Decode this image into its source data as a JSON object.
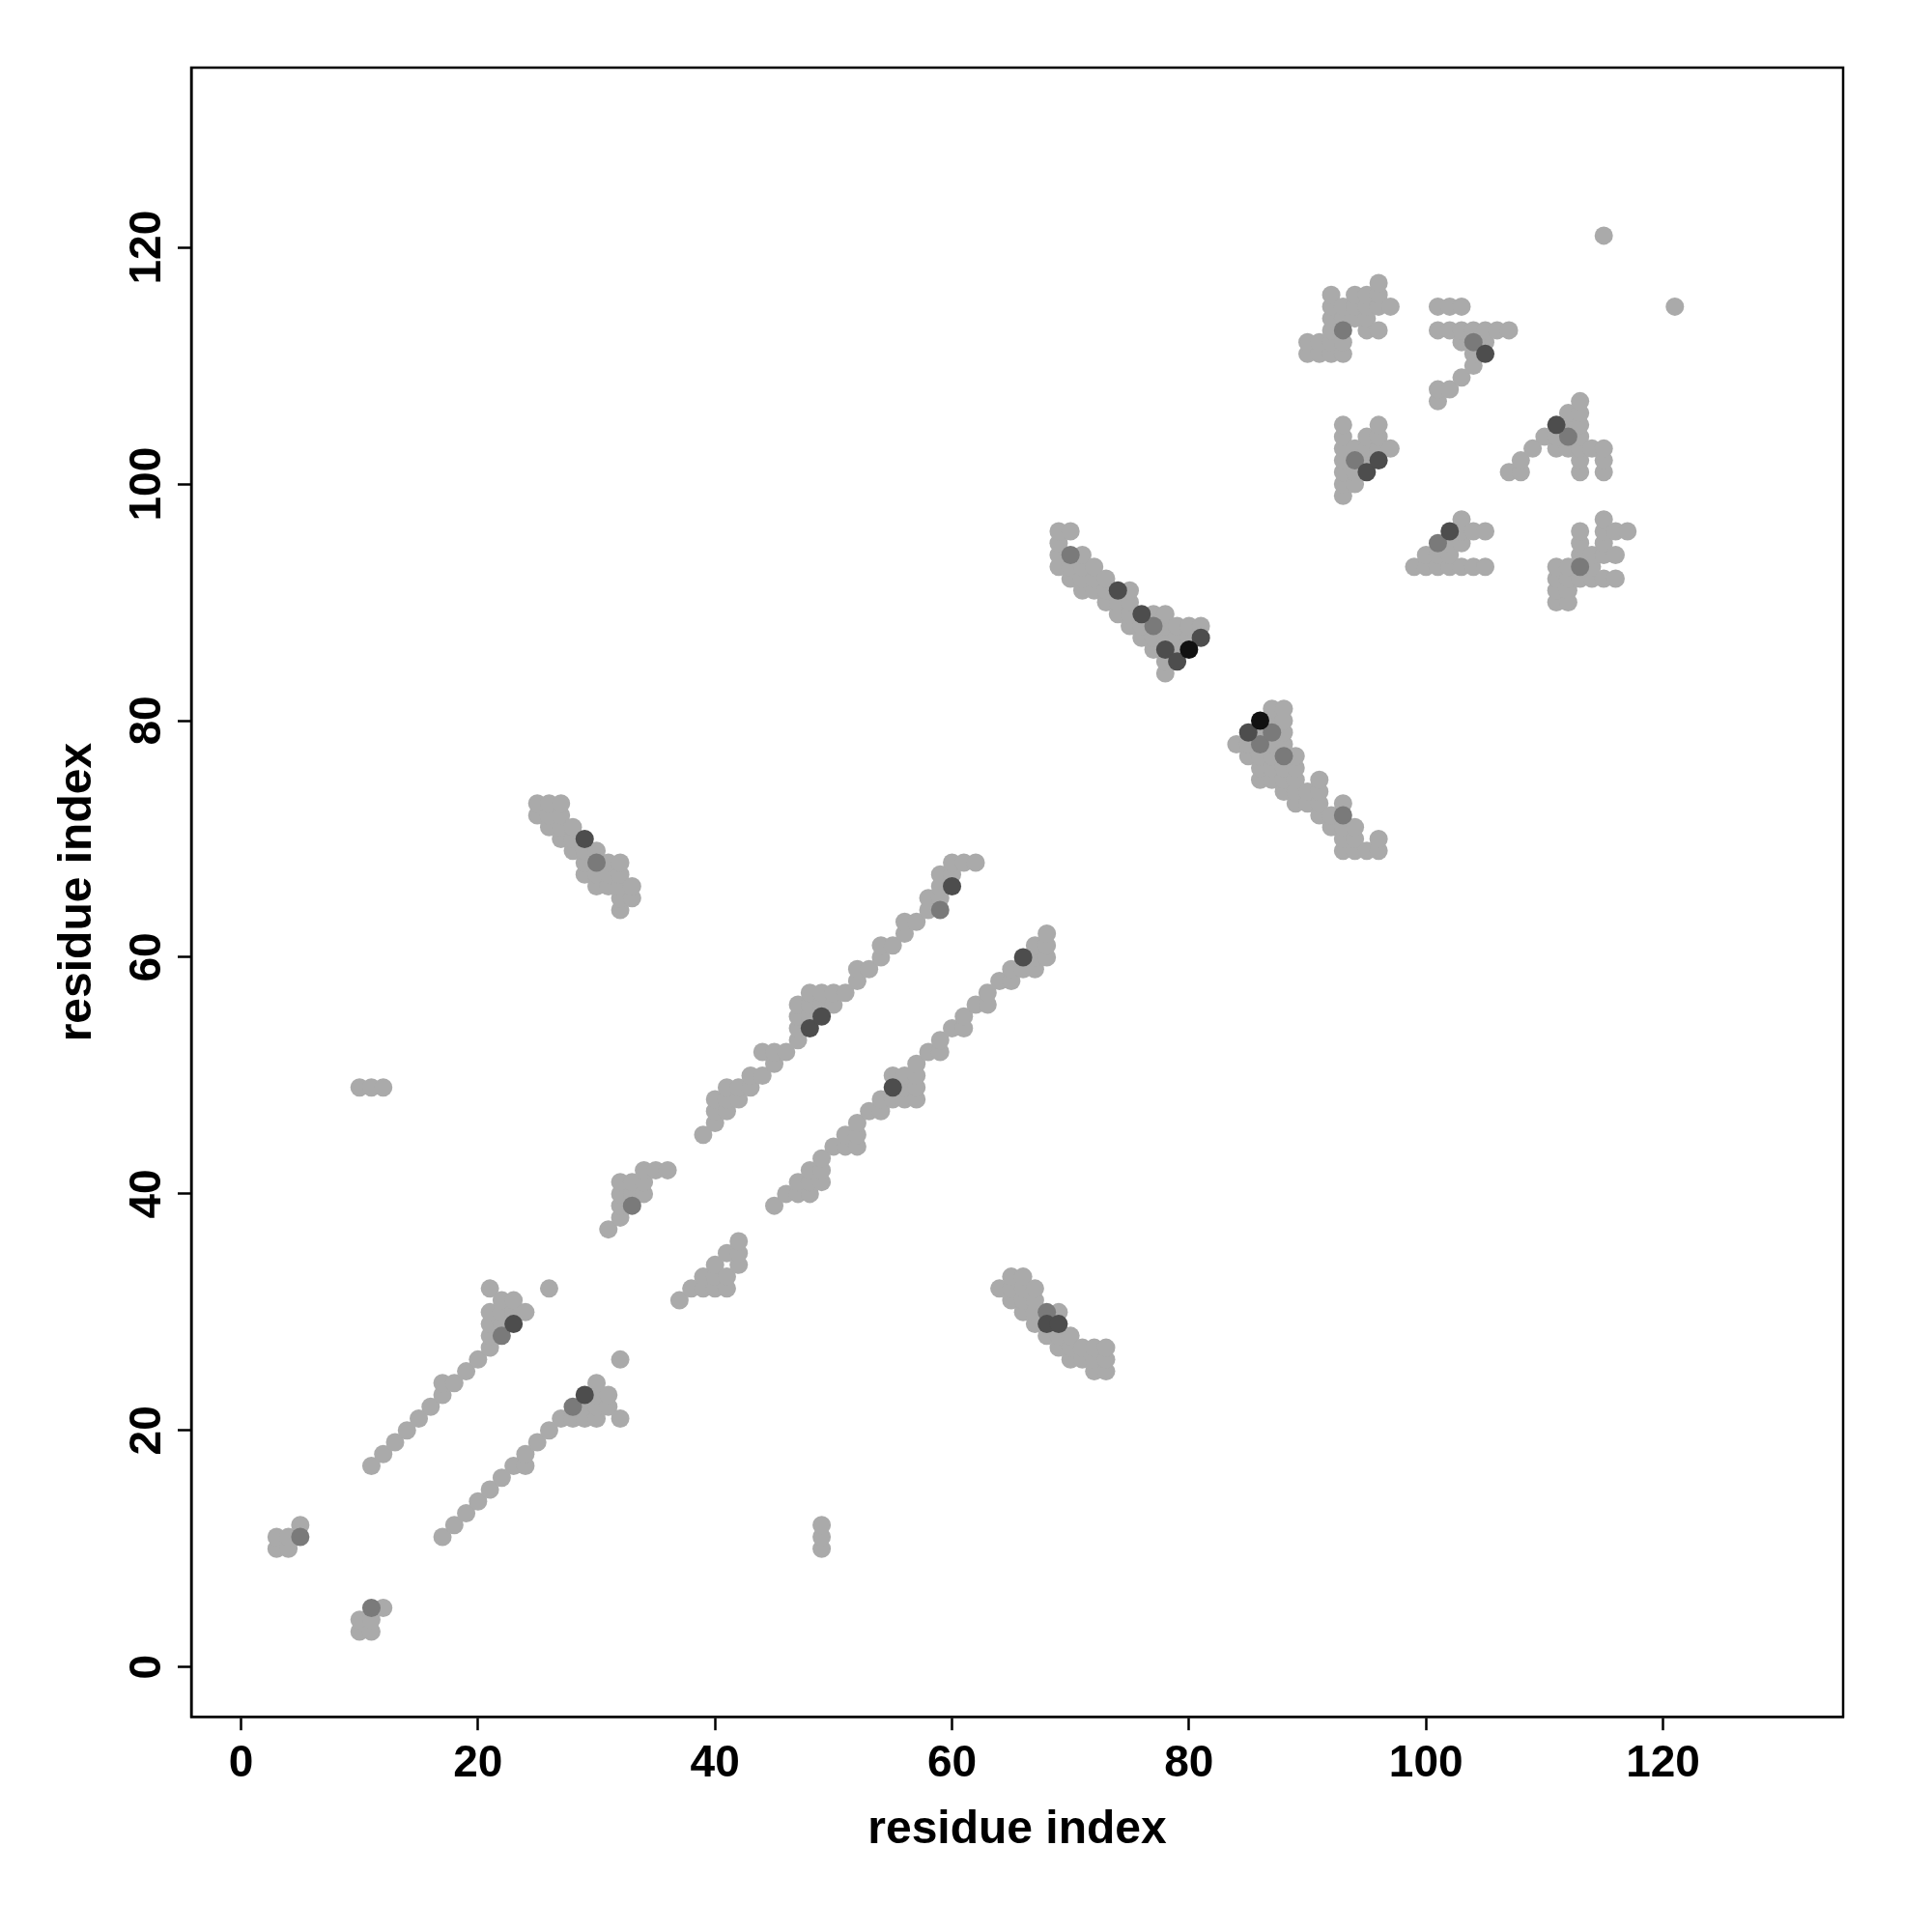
{
  "chart_data": {
    "type": "scatter",
    "xlabel": "residue index",
    "ylabel": "residue index",
    "xlim": [
      -4.2,
      135.2
    ],
    "ylim": [
      -4.2,
      135.2
    ],
    "xticks": [
      0,
      20,
      40,
      60,
      80,
      100,
      120
    ],
    "yticks": [
      0,
      20,
      40,
      60,
      80,
      100,
      120
    ],
    "grid": false,
    "marker": "circle",
    "legend": false,
    "series": [
      {
        "color": "#aaaaaa",
        "x": [
          3,
          3,
          4,
          4,
          5,
          10,
          10,
          11,
          11,
          12,
          10,
          11,
          12,
          49,
          49,
          49,
          11,
          12,
          13,
          14,
          15,
          16,
          17,
          17,
          18,
          19,
          20,
          21,
          21,
          21,
          21,
          21,
          22,
          22,
          22,
          23,
          23,
          24,
          26,
          17,
          18,
          19,
          20,
          21,
          22,
          23,
          24,
          24,
          25,
          26,
          27,
          28,
          29,
          29,
          30,
          30,
          30,
          30,
          31,
          31,
          32,
          32,
          31,
          32,
          32,
          32,
          32,
          33,
          33,
          34,
          34,
          34,
          35,
          36,
          37,
          38,
          39,
          39,
          40,
          40,
          40,
          41,
          41,
          41,
          42,
          42,
          42,
          39,
          40,
          40,
          40,
          41,
          41,
          41,
          42,
          42,
          43,
          43,
          44,
          44,
          45,
          45,
          46,
          47,
          47,
          47,
          47,
          48,
          48,
          48,
          49,
          49,
          50,
          50,
          51,
          52,
          52,
          53,
          54,
          54,
          55,
          56,
          56,
          57,
          58,
          58,
          59,
          59,
          59,
          60,
          60,
          61,
          62,
          45,
          46,
          47,
          47,
          48,
          48,
          48,
          49,
          49,
          49,
          50,
          51,
          51,
          52,
          52,
          52,
          53,
          54,
          54,
          55,
          55,
          56,
          56,
          56,
          57,
          57,
          57,
          57,
          58,
          59,
          59,
          60,
          61,
          61,
          62,
          63,
          63,
          64,
          65,
          65,
          66,
          67,
          67,
          67,
          68,
          68,
          68,
          25,
          25,
          26,
          26,
          26,
          27,
          27,
          27,
          27,
          28,
          28,
          28,
          29,
          29,
          29,
          30,
          30,
          30,
          31,
          31,
          31,
          32,
          32,
          32,
          32,
          32,
          33,
          33,
          64,
          65,
          65,
          65,
          66,
          66,
          66,
          66,
          67,
          67,
          67,
          67,
          68,
          69,
          69,
          69,
          70,
          70,
          70,
          71,
          71,
          72,
          72,
          72,
          73,
          73,
          73,
          69,
          69,
          69,
          69,
          70,
          70,
          70,
          71,
          71,
          71,
          71,
          72,
          72,
          72,
          73,
          73,
          73,
          74,
          74,
          75,
          75,
          75,
          75,
          76,
          76,
          77,
          77,
          77,
          78,
          78,
          78,
          78,
          78,
          79,
          79,
          79,
          80,
          80,
          81,
          84,
          85,
          85,
          86,
          86,
          86,
          86,
          87,
          87,
          87,
          87,
          87,
          87,
          88,
          88,
          88,
          88,
          88,
          88,
          88,
          89,
          89,
          89,
          89,
          89,
          90,
          90,
          91,
          91,
          91,
          91,
          92,
          92,
          93,
          93,
          93,
          93,
          94,
          94,
          94,
          95,
          96,
          96,
          90,
          90,
          91,
          91,
          92,
          92,
          92,
          92,
          92,
          92,
          93,
          93,
          93,
          93,
          94,
          94,
          94,
          95,
          95,
          95,
          95,
          96,
          96,
          96,
          96,
          97,
          93,
          93,
          93,
          93,
          93,
          93,
          93,
          94,
          94,
          94,
          95,
          95,
          95,
          96,
          96,
          96,
          97,
          99,
          100,
          100,
          101,
          101,
          102,
          102,
          102,
          103,
          103,
          103,
          103,
          104,
          104,
          105,
          105,
          101,
          101,
          102,
          103,
          104,
          101,
          101,
          102,
          102,
          103,
          103,
          103,
          104,
          104,
          105,
          105,
          106,
          107,
          107,
          108,
          108,
          109,
          110,
          111,
          111,
          112,
          112,
          112,
          113,
          113,
          113,
          113,
          113,
          113,
          113,
          114,
          115,
          115,
          115,
          111,
          111,
          111,
          111,
          112,
          112,
          112,
          112,
          113,
          113,
          113,
          113,
          114,
          114,
          114,
          115,
          115,
          115,
          115,
          115,
          116,
          116,
          116,
          117,
          115,
          121
        ],
        "values": [
          10,
          11,
          10,
          11,
          12,
          3,
          4,
          3,
          4,
          5,
          49,
          49,
          49,
          10,
          11,
          12,
          17,
          18,
          19,
          20,
          21,
          22,
          23,
          24,
          24,
          25,
          26,
          27,
          28,
          29,
          30,
          32,
          29,
          30,
          31,
          30,
          31,
          30,
          32,
          11,
          12,
          13,
          14,
          15,
          16,
          17,
          17,
          18,
          19,
          20,
          21,
          21,
          21,
          22,
          21,
          22,
          23,
          24,
          22,
          23,
          21,
          26,
          37,
          38,
          39,
          40,
          41,
          40,
          41,
          40,
          41,
          42,
          42,
          42,
          31,
          32,
          32,
          33,
          32,
          33,
          34,
          32,
          33,
          35,
          34,
          35,
          36,
          45,
          46,
          47,
          48,
          47,
          48,
          49,
          48,
          49,
          49,
          50,
          50,
          52,
          51,
          52,
          52,
          53,
          54,
          55,
          56,
          55,
          56,
          57,
          56,
          57,
          56,
          57,
          57,
          58,
          59,
          59,
          60,
          61,
          61,
          62,
          63,
          63,
          64,
          65,
          65,
          66,
          67,
          67,
          68,
          68,
          68,
          39,
          40,
          40,
          41,
          40,
          41,
          42,
          41,
          42,
          43,
          44,
          44,
          45,
          44,
          45,
          46,
          47,
          47,
          48,
          48,
          50,
          48,
          49,
          50,
          48,
          49,
          50,
          51,
          52,
          52,
          53,
          54,
          54,
          55,
          56,
          56,
          57,
          58,
          58,
          59,
          59,
          59,
          60,
          61,
          60,
          61,
          62,
          72,
          73,
          71,
          72,
          73,
          70,
          71,
          72,
          73,
          69,
          70,
          71,
          67,
          68,
          69,
          66,
          67,
          69,
          66,
          67,
          68,
          64,
          65,
          66,
          67,
          68,
          65,
          66,
          32,
          31,
          32,
          33,
          30,
          31,
          32,
          33,
          29,
          30,
          31,
          32,
          28,
          27,
          28,
          30,
          26,
          27,
          28,
          26,
          27,
          25,
          26,
          27,
          25,
          26,
          27,
          93,
          94,
          95,
          96,
          92,
          93,
          96,
          91,
          92,
          93,
          94,
          91,
          92,
          93,
          90,
          91,
          92,
          89,
          90,
          88,
          89,
          90,
          91,
          87,
          88,
          86,
          87,
          89,
          84,
          85,
          87,
          88,
          89,
          86,
          87,
          88,
          87,
          88,
          88,
          78,
          77,
          78,
          75,
          76,
          77,
          79,
          75,
          76,
          77,
          78,
          80,
          81,
          74,
          75,
          76,
          78,
          79,
          80,
          81,
          73,
          74,
          75,
          76,
          77,
          73,
          74,
          72,
          73,
          74,
          75,
          71,
          72,
          69,
          70,
          71,
          73,
          69,
          70,
          71,
          69,
          69,
          70,
          111,
          112,
          111,
          112,
          111,
          112,
          113,
          114,
          115,
          116,
          111,
          112,
          114,
          115,
          114,
          115,
          116,
          113,
          114,
          115,
          116,
          113,
          115,
          116,
          117,
          115,
          99,
          100,
          101,
          102,
          103,
          104,
          105,
          100,
          101,
          103,
          102,
          103,
          104,
          103,
          104,
          105,
          103,
          93,
          93,
          94,
          93,
          94,
          93,
          94,
          95,
          93,
          95,
          96,
          97,
          93,
          96,
          93,
          96,
          107,
          108,
          108,
          109,
          110,
          113,
          115,
          113,
          115,
          112,
          113,
          115,
          111,
          113,
          112,
          113,
          113,
          113,
          101,
          101,
          102,
          103,
          104,
          103,
          104,
          103,
          105,
          106,
          101,
          102,
          103,
          104,
          105,
          106,
          107,
          103,
          101,
          102,
          103,
          90,
          91,
          92,
          93,
          90,
          91,
          92,
          93,
          92,
          94,
          95,
          96,
          92,
          93,
          94,
          92,
          94,
          95,
          96,
          97,
          92,
          94,
          96,
          96,
          121,
          115
        ]
      },
      {
        "color": "#7a7a7a",
        "x": [
          5,
          11,
          22,
          28,
          33,
          59,
          30,
          68,
          70,
          77,
          86,
          87,
          88,
          93,
          94,
          93,
          104,
          112,
          101,
          113
        ],
        "values": [
          11,
          5,
          28,
          22,
          39,
          64,
          68,
          30,
          94,
          88,
          78,
          79,
          77,
          72,
          102,
          113,
          112,
          104,
          95,
          93
        ]
      },
      {
        "color": "#4d4d4d",
        "x": [
          23,
          29,
          48,
          49,
          55,
          60,
          66,
          29,
          68,
          69,
          74,
          76,
          78,
          79,
          81,
          85,
          95,
          96,
          102,
          105,
          111
        ],
        "values": [
          29,
          23,
          54,
          55,
          49,
          66,
          60,
          70,
          29,
          29,
          91,
          89,
          86,
          85,
          87,
          79,
          101,
          102,
          96,
          111,
          105
        ]
      },
      {
        "color": "#111111",
        "x": [
          80,
          86
        ],
        "values": [
          86,
          80
        ]
      }
    ]
  }
}
